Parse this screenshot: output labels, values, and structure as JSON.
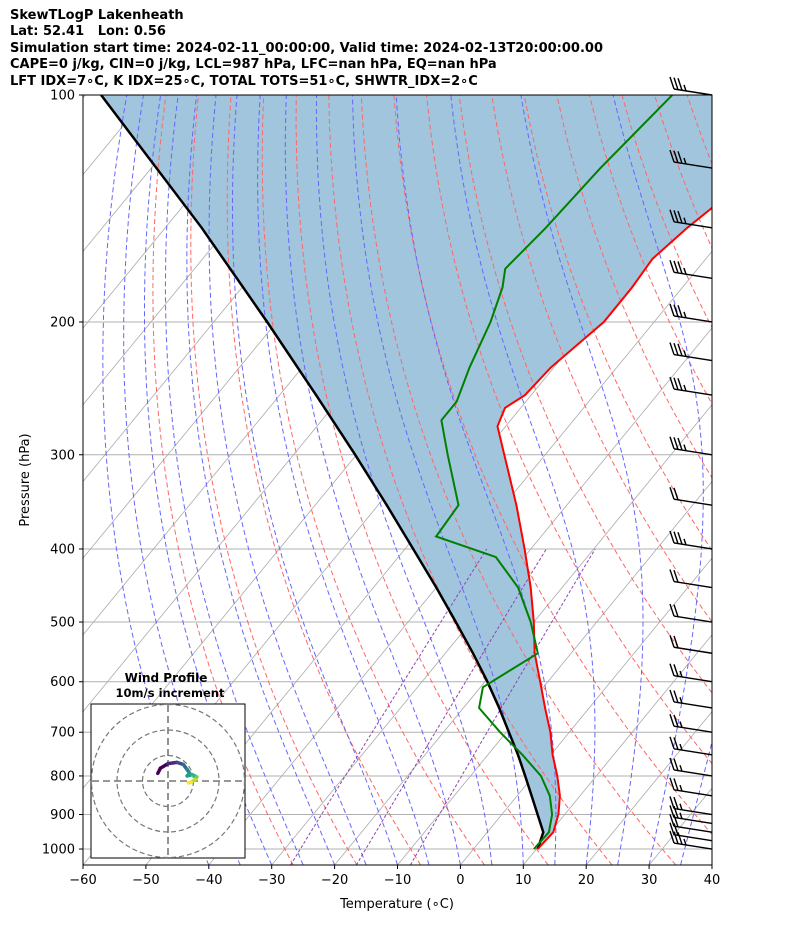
{
  "header": {
    "line1": "SkewTLogP Lakenheath",
    "line2": "Lat: 52.41   Lon: 0.56",
    "line3": "Simulation start time: 2024-02-11_00:00:00, Valid time: 2024-02-13T20:00:00.00",
    "line4": "CAPE=0 j/kg, CIN=0 j/kg, LCL=987 hPa, LFC=nan hPa, EQ=nan hPa",
    "line5": "LFT IDX=7∘C, K IDX=25∘C, TOTAL TOTS=51∘C, SHWTR_IDX=2∘C"
  },
  "colors": {
    "temperature": "#ff0000",
    "dewpoint": "#008000",
    "parcel": "#000000",
    "cape_fill": "#a2c5de",
    "dry_adiabat": "#ff6666",
    "moist_adiabat": "#6666ff",
    "mixing_ratio": "#8e44ad",
    "isotherm": "#aaaaaa"
  },
  "chart_data": {
    "type": "line",
    "subtype": "skew-T log-P diagram",
    "xlabel": "Temperature (∘C)",
    "ylabel": "Pressure (hPa)",
    "xlim": [
      -60,
      40
    ],
    "ylim": [
      1050,
      100
    ],
    "y_scale": "log",
    "x_ticks": [
      -60,
      -50,
      -40,
      -30,
      -20,
      -10,
      0,
      10,
      20,
      30,
      40
    ],
    "x_tick_labels": [
      "−60",
      "−50",
      "−40",
      "−30",
      "−20",
      "−10",
      "0",
      "10",
      "20",
      "30",
      "40"
    ],
    "y_ticks": [
      1000,
      900,
      800,
      700,
      600,
      500,
      400,
      300,
      200,
      100
    ],
    "y_tick_labels": [
      "1000",
      "900",
      "800",
      "700",
      "600",
      "500",
      "400",
      "300",
      "200",
      "100"
    ],
    "grid": true,
    "series": [
      {
        "name": "Temperature",
        "pressure": [
          1000,
          950,
          900,
          850,
          800,
          750,
          700,
          650,
          600,
          550,
          500,
          450,
          400,
          350,
          300,
          275,
          260,
          250,
          230,
          200,
          180,
          165,
          150,
          140,
          125,
          110,
          100
        ],
        "values": [
          10.2,
          10.5,
          9.0,
          6.8,
          3.8,
          0.3,
          -3.0,
          -7.0,
          -11.2,
          -15.8,
          -20.0,
          -25.0,
          -31.0,
          -38.0,
          -46.5,
          -51.3,
          -52.5,
          -51.0,
          -50.5,
          -48.0,
          -48.0,
          -48.5,
          -47.0,
          -45.5,
          -45.2,
          -45.0,
          -45.2
        ]
      },
      {
        "name": "Dewpoint",
        "pressure": [
          1000,
          950,
          900,
          850,
          800,
          750,
          700,
          650,
          610,
          550,
          500,
          450,
          410,
          385,
          350,
          300,
          270,
          255,
          230,
          200,
          180,
          170,
          150,
          125,
          100
        ],
        "values": [
          9.6,
          9.8,
          8.0,
          5.2,
          1.2,
          -4.5,
          -11.0,
          -17.5,
          -19.6,
          -15.3,
          -20.5,
          -27.0,
          -34.5,
          -46.7,
          -47.2,
          -55.5,
          -61.0,
          -61.0,
          -63.4,
          -66.0,
          -68.6,
          -70.6,
          -69.5,
          -68.6,
          -66.7
        ]
      },
      {
        "name": "Parcel",
        "pressure": [
          1000,
          950,
          900,
          850,
          800,
          750,
          700,
          650,
          600,
          550,
          500,
          450,
          400,
          350,
          300,
          250,
          200,
          150,
          100
        ],
        "values": [
          10.2,
          8.9,
          5.7,
          2.3,
          -1.3,
          -5.2,
          -9.6,
          -14.3,
          -19.6,
          -25.6,
          -32.4,
          -40.0,
          -48.7,
          -58.6,
          -70.2,
          -84.2,
          -101.5,
          -124.2,
          -157.5
        ]
      }
    ],
    "cape_fill": "shaded region between parcel and temperature profiles",
    "winds": {
      "pressure": [
        1000,
        975,
        950,
        925,
        900,
        850,
        800,
        750,
        700,
        650,
        600,
        550,
        500,
        450,
        400,
        350,
        300,
        250,
        225,
        200,
        175,
        150,
        125,
        100
      ],
      "barb_speeds_kt": [
        25,
        20,
        20,
        15,
        15,
        15,
        15,
        15,
        15,
        15,
        15,
        20,
        20,
        20,
        25,
        20,
        25,
        25,
        25,
        25,
        25,
        25,
        25,
        25
      ]
    },
    "inset": {
      "title": "Wind Profile",
      "subtitle": "10m/s increment",
      "type": "hodograph",
      "ring_spacing_ms": 10,
      "points_ms": [
        [
          -4,
          3
        ],
        [
          -3,
          5
        ],
        [
          0,
          6.8
        ],
        [
          3.5,
          7.3
        ],
        [
          6,
          6.5
        ],
        [
          7.5,
          4.5
        ],
        [
          8.5,
          3
        ],
        [
          7.5,
          2
        ],
        [
          9.5,
          2.5
        ],
        [
          11.3,
          1.6
        ],
        [
          10.8,
          0.6
        ],
        [
          9.0,
          -0.5
        ],
        [
          8.0,
          -0.7
        ]
      ]
    }
  }
}
